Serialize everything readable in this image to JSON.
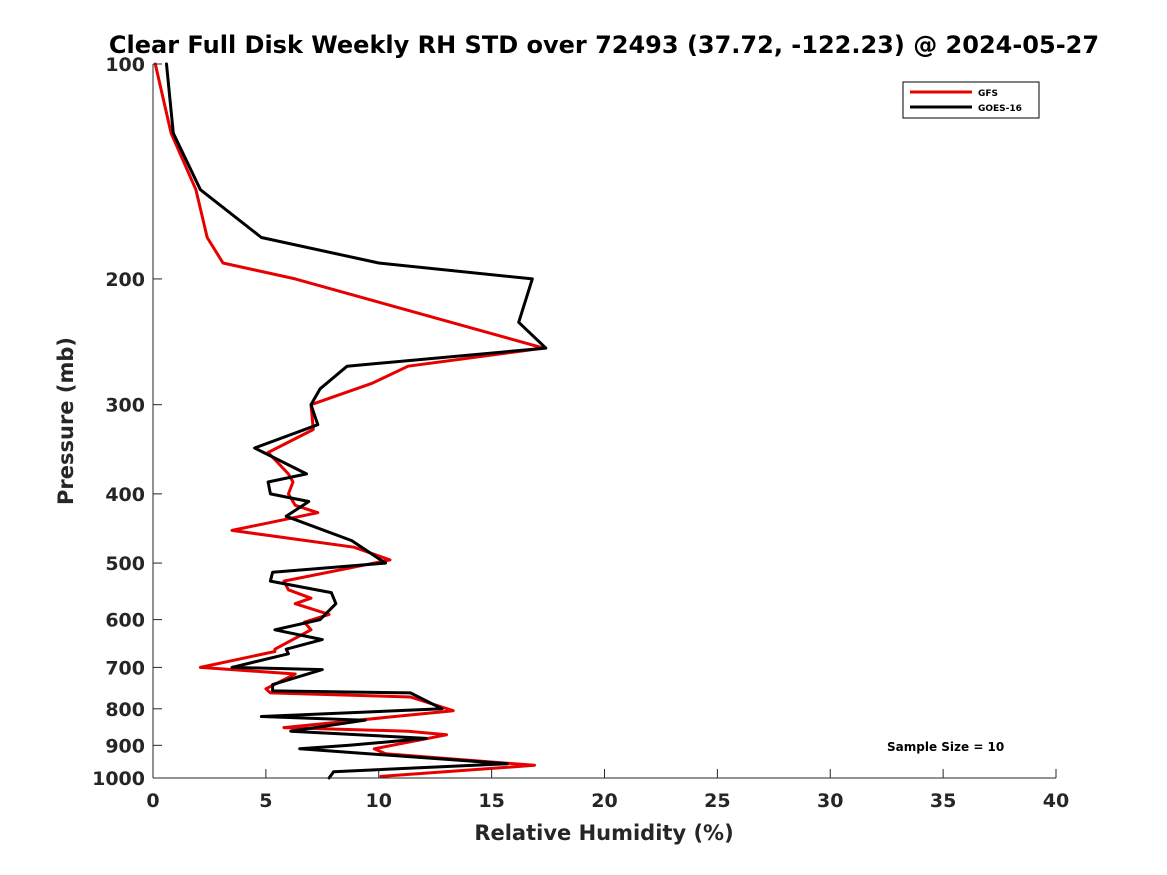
{
  "chart_data": {
    "type": "line",
    "title": "Clear Full Disk Weekly RH STD over 72493 (37.72, -122.23) @ 2024-05-27",
    "xlabel": "Relative Humidity (%)",
    "ylabel": "Pressure (mb)",
    "xlim": [
      0,
      40
    ],
    "ylim": [
      100,
      1000
    ],
    "yscale": "log",
    "y_reversed": true,
    "xticks": [
      0,
      5,
      10,
      15,
      20,
      25,
      30,
      35,
      40
    ],
    "yticks": [
      100,
      200,
      300,
      400,
      500,
      600,
      700,
      800,
      900,
      1000
    ],
    "grid": false,
    "legend_position": "top-right",
    "annotation": "Sample Size = 10",
    "series": [
      {
        "name": "GFS",
        "color": "#e60000",
        "points": [
          [
            0.1,
            100
          ],
          [
            0.8,
            125
          ],
          [
            1.9,
            150
          ],
          [
            2.4,
            175
          ],
          [
            3.1,
            190
          ],
          [
            6.3,
            200
          ],
          [
            17.3,
            250
          ],
          [
            11.3,
            265
          ],
          [
            9.7,
            280
          ],
          [
            7.0,
            300
          ],
          [
            7.1,
            325
          ],
          [
            5.1,
            350
          ],
          [
            6.0,
            375
          ],
          [
            6.2,
            385
          ],
          [
            6.0,
            400
          ],
          [
            6.3,
            415
          ],
          [
            7.3,
            425
          ],
          [
            3.5,
            450
          ],
          [
            8.9,
            475
          ],
          [
            10.5,
            495
          ],
          [
            5.8,
            530
          ],
          [
            6.0,
            545
          ],
          [
            7.0,
            560
          ],
          [
            6.3,
            570
          ],
          [
            7.8,
            590
          ],
          [
            6.7,
            605
          ],
          [
            7.0,
            620
          ],
          [
            5.4,
            660
          ],
          [
            5.4,
            665
          ],
          [
            2.1,
            700
          ],
          [
            6.3,
            715
          ],
          [
            5.0,
            750
          ],
          [
            5.2,
            760
          ],
          [
            11.4,
            770
          ],
          [
            13.3,
            805
          ],
          [
            5.8,
            850
          ],
          [
            11.3,
            860
          ],
          [
            13.0,
            870
          ],
          [
            9.8,
            910
          ],
          [
            10.3,
            925
          ],
          [
            16.9,
            960
          ],
          [
            10.1,
            995
          ]
        ]
      },
      {
        "name": "GOES-16",
        "color": "#000000",
        "points": [
          [
            0.6,
            100
          ],
          [
            0.9,
            125
          ],
          [
            2.1,
            150
          ],
          [
            4.8,
            175
          ],
          [
            10.0,
            190
          ],
          [
            16.8,
            200
          ],
          [
            16.2,
            230
          ],
          [
            17.4,
            250
          ],
          [
            8.6,
            265
          ],
          [
            7.4,
            285
          ],
          [
            7.0,
            300
          ],
          [
            7.3,
            320
          ],
          [
            4.5,
            345
          ],
          [
            6.8,
            375
          ],
          [
            5.1,
            385
          ],
          [
            5.2,
            400
          ],
          [
            6.9,
            410
          ],
          [
            5.9,
            430
          ],
          [
            8.8,
            465
          ],
          [
            10.3,
            500
          ],
          [
            5.3,
            515
          ],
          [
            5.2,
            530
          ],
          [
            7.9,
            550
          ],
          [
            8.1,
            570
          ],
          [
            7.4,
            600
          ],
          [
            5.4,
            620
          ],
          [
            7.5,
            640
          ],
          [
            5.9,
            660
          ],
          [
            6.0,
            670
          ],
          [
            3.5,
            700
          ],
          [
            7.5,
            705
          ],
          [
            5.3,
            740
          ],
          [
            5.3,
            755
          ],
          [
            11.4,
            760
          ],
          [
            12.8,
            800
          ],
          [
            4.8,
            820
          ],
          [
            9.4,
            830
          ],
          [
            6.1,
            860
          ],
          [
            12.1,
            880
          ],
          [
            8.7,
            900
          ],
          [
            6.5,
            910
          ],
          [
            15.7,
            955
          ],
          [
            8.0,
            980
          ],
          [
            7.8,
            1000
          ]
        ]
      }
    ]
  }
}
